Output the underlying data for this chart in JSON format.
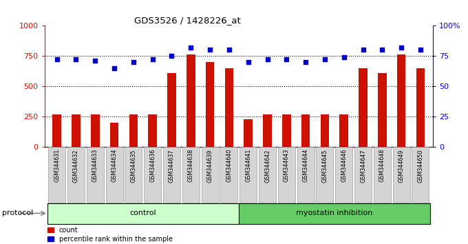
{
  "title": "GDS3526 / 1428226_at",
  "samples": [
    "GSM344631",
    "GSM344632",
    "GSM344633",
    "GSM344634",
    "GSM344635",
    "GSM344636",
    "GSM344637",
    "GSM344638",
    "GSM344639",
    "GSM344640",
    "GSM344641",
    "GSM344642",
    "GSM344643",
    "GSM344644",
    "GSM344645",
    "GSM344646",
    "GSM344647",
    "GSM344648",
    "GSM344649",
    "GSM344650"
  ],
  "counts": [
    270,
    270,
    268,
    200,
    270,
    268,
    610,
    760,
    700,
    650,
    225,
    265,
    270,
    270,
    270,
    270,
    650,
    610,
    760,
    650
  ],
  "percentiles": [
    72,
    72,
    71,
    65,
    70,
    72,
    75,
    82,
    80,
    80,
    70,
    72,
    72,
    70,
    72,
    74,
    80,
    80,
    82,
    80
  ],
  "bar_color": "#cc1100",
  "dot_color": "#0000cc",
  "n_control": 10,
  "n_treatment": 10,
  "control_label": "control",
  "treatment_label": "myostatin inhibition",
  "protocol_label": "protocol",
  "count_legend": "count",
  "percentile_legend": "percentile rank within the sample",
  "ylim_left": [
    0,
    1000
  ],
  "ylim_right": [
    0,
    100
  ],
  "yticks_left": [
    0,
    250,
    500,
    750,
    1000
  ],
  "yticks_right": [
    0,
    25,
    50,
    75,
    100
  ],
  "grid_values": [
    250,
    500,
    750
  ],
  "bg_color": "#ffffff",
  "control_bg": "#ccffcc",
  "treatment_bg": "#66cc66",
  "label_box_color": "#d4d4d4",
  "label_box_edge": "#888888"
}
